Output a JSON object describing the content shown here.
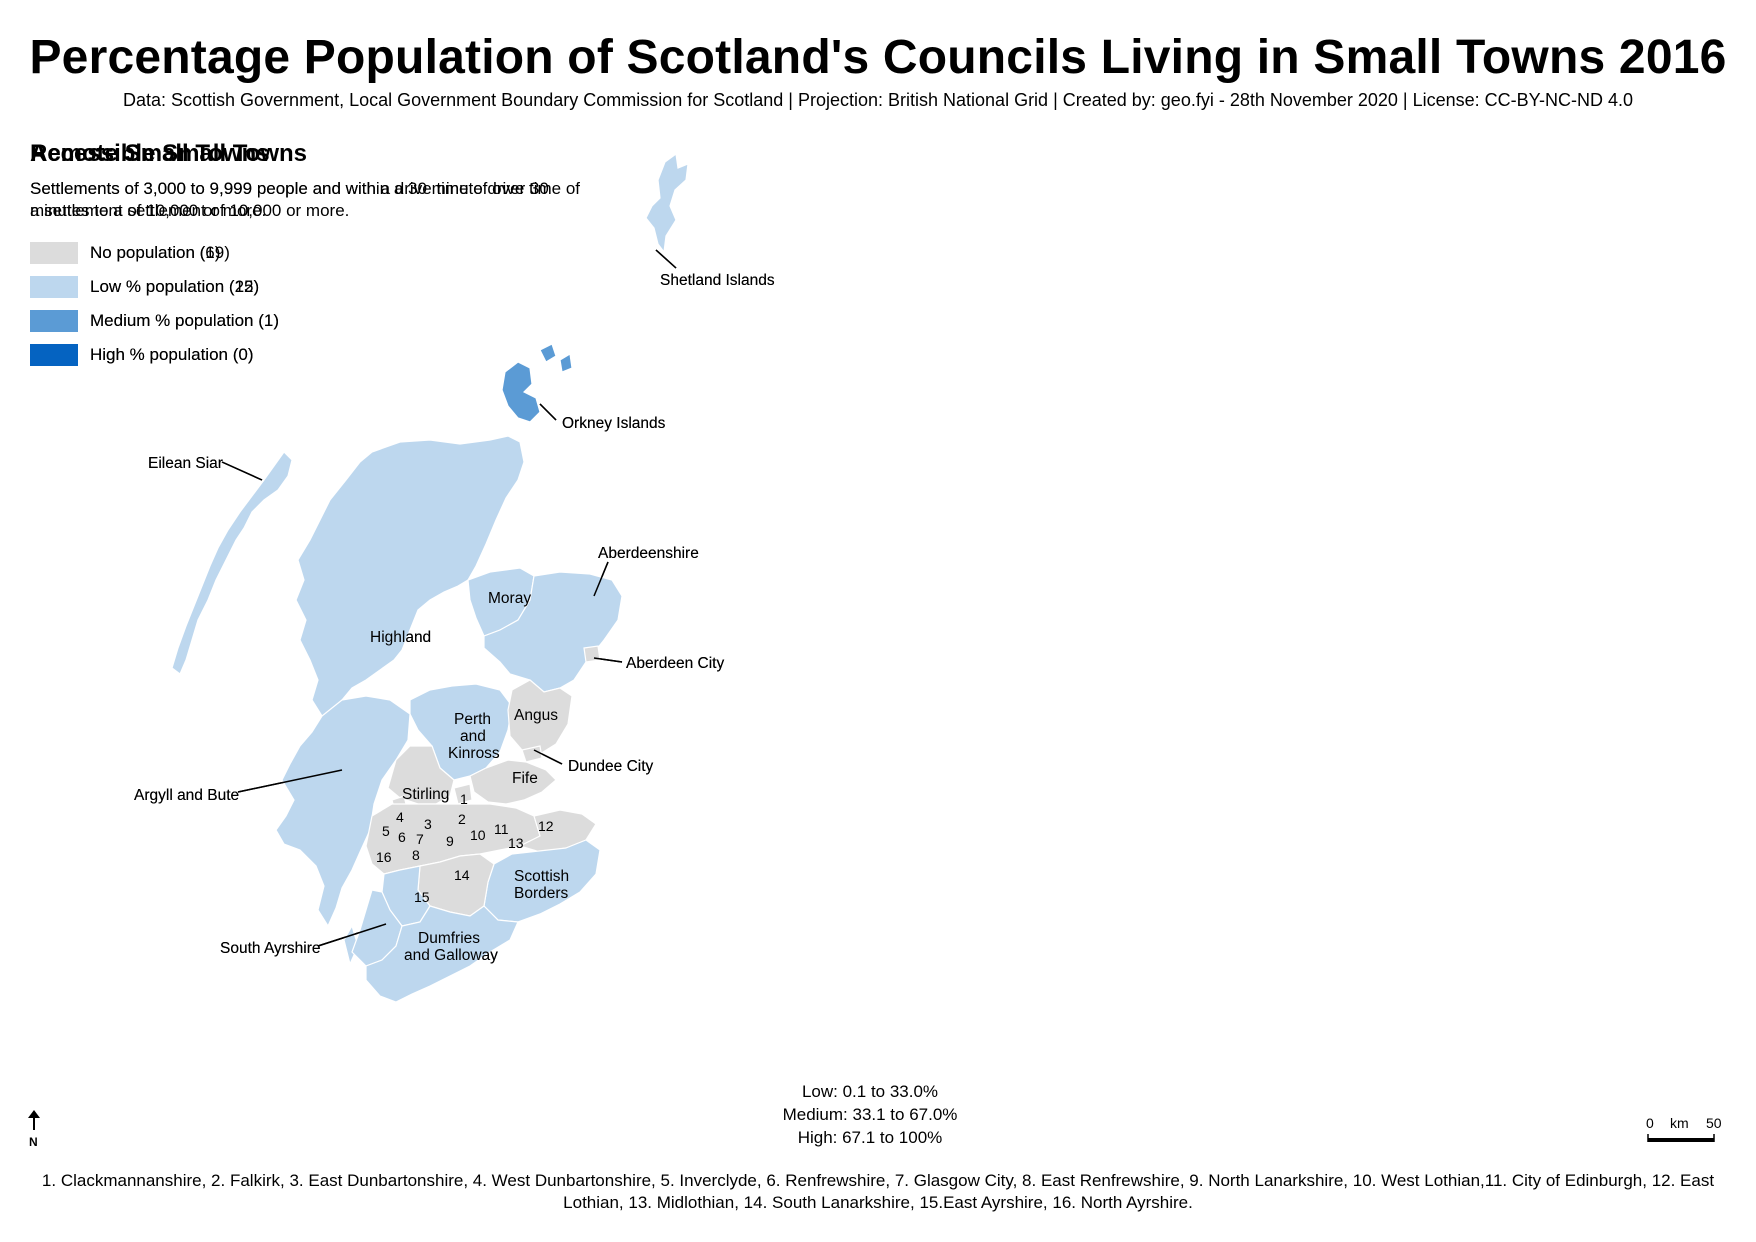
{
  "title": "Percentage Population of Scotland's Councils Living in Small Towns 2016",
  "subtitle": "Data: Scottish Government, Local Government Boundary Commission for Scotland | Projection: British National Grid | Created by: geo.fyi - 28th November 2020 | License: CC-BY-NC-ND 4.0",
  "colors": {
    "none": "#dcdcdc",
    "low": "#bdd7ee",
    "medium": "#5b9bd5",
    "high": "#0563c1",
    "boundary": "#ffffff"
  },
  "panels": [
    {
      "title": "Accessible Small Towns",
      "description": "Settlements of 3,000 to 9,999 people and within a 30 minute drive time of a settlement of 10,000 or more.",
      "legend": [
        {
          "label": "No population (6)",
          "class": "none"
        },
        {
          "label": "Low % population (25)",
          "class": "low"
        },
        {
          "label": "Medium % population (1)",
          "class": "medium"
        },
        {
          "label": "High % population (0)",
          "class": "high"
        }
      ],
      "regions": {
        "shetland": "none",
        "orkney": "none",
        "eilean_siar": "none",
        "highland": "low",
        "moray": "low",
        "aberdeenshire": "low",
        "aberdeen_city": "low",
        "argyll_bute": "low",
        "perth_kinross": "low",
        "angus": "low",
        "dundee_city": "none",
        "stirling": "low",
        "fife": "low",
        "clackmannanshire": "medium",
        "central_belt": "low",
        "west_dunbartonshire": "none",
        "scottish_borders": "low",
        "dumfries_galloway": "low",
        "south_ayrshire": "low",
        "south_lanarkshire": "low",
        "east_ayrshire": "low"
      }
    },
    {
      "title": "Remote Small Towns",
      "description": "Settlements of 3,000 to 9,999 people and with a drive time of over 30 minutes to a settlement of 10,000 or more.",
      "legend": [
        {
          "label": "No population (19)",
          "class": "none"
        },
        {
          "label": "Low % population (12)",
          "class": "low"
        },
        {
          "label": "Medium % population (1)",
          "class": "medium"
        },
        {
          "label": "High % population (0)",
          "class": "high"
        }
      ],
      "regions": {
        "shetland": "low",
        "orkney": "medium",
        "eilean_siar": "low",
        "highland": "low",
        "moray": "low",
        "aberdeenshire": "low",
        "aberdeen_city": "none",
        "argyll_bute": "low",
        "perth_kinross": "low",
        "angus": "none",
        "dundee_city": "none",
        "stirling": "none",
        "fife": "none",
        "clackmannanshire": "none",
        "central_belt": "none",
        "west_dunbartonshire": "none",
        "scottish_borders": "low",
        "dumfries_galloway": "low",
        "south_ayrshire": "low",
        "south_lanarkshire": "none",
        "east_ayrshire": "low"
      }
    }
  ],
  "map_labels": {
    "shetland": "Shetland Islands",
    "orkney": "Orkney Islands",
    "eilean_siar": "Eilean Siar",
    "aberdeenshire": "Aberdeenshire",
    "moray": "Moray",
    "highland": "Highland",
    "aberdeen_city": "Aberdeen City",
    "perth": "Perth",
    "and": "and",
    "kinross": "Kinross",
    "angus": "Angus",
    "dundee_city": "Dundee City",
    "fife": "Fife",
    "argyll_bute": "Argyll and Bute",
    "stirling": "Stirling",
    "scottish": "Scottish",
    "borders": "Borders",
    "south_ayrshire": "South Ayrshire",
    "dumfries": "Dumfries",
    "and_galloway": "and Galloway"
  },
  "council_numbers": [
    "1",
    "2",
    "3",
    "4",
    "5",
    "6",
    "7",
    "8",
    "9",
    "10",
    "11",
    "12",
    "13",
    "14",
    "15",
    "16"
  ],
  "class_ranges": {
    "low": "Low: 0.1 to 33.0%",
    "medium": "Medium: 33.1 to 67.0%",
    "high": "High: 67.1 to 100%"
  },
  "north_label": "N",
  "scale_bar": {
    "zero": "0",
    "unit": "km",
    "max": "50"
  },
  "footnote": "1. Clackmannanshire, 2. Falkirk, 3. East Dunbartonshire, 4. West Dunbartonshire, 5. Inverclyde, 6. Renfrewshire, 7. Glasgow City, 8. East Renfrewshire, 9. North Lanarkshire, 10. West Lothian,11. City of Edinburgh, 12. East Lothian, 13. Midlothian, 14. South Lanarkshire, 15.East Ayrshire, 16. North Ayrshire."
}
